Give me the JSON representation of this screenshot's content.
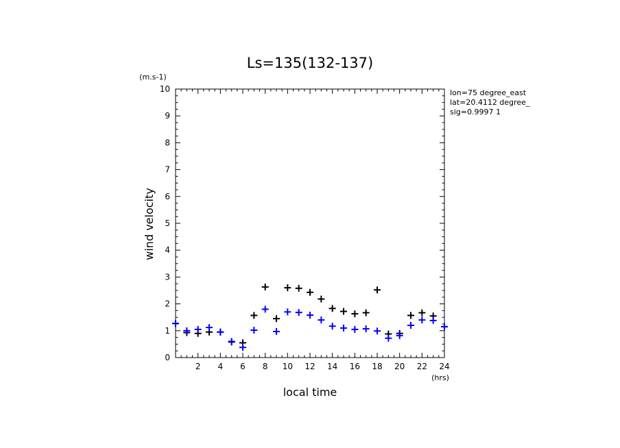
{
  "chart_data": {
    "type": "scatter",
    "title": "Ls=135(132-137)",
    "xlabel": "local time",
    "ylabel": "wind velocity",
    "x_unit": "(hrs)",
    "y_unit": "(m.s-1)",
    "xlim": [
      0,
      24
    ],
    "ylim": [
      0,
      10
    ],
    "x_ticks": [
      2,
      4,
      6,
      8,
      10,
      12,
      14,
      16,
      18,
      20,
      22,
      24
    ],
    "y_ticks": [
      0,
      1,
      2,
      3,
      4,
      5,
      6,
      7,
      8,
      9,
      10
    ],
    "grid": false,
    "legend": "none",
    "annotations": [
      "lon=75 degree_east",
      "lat=20.4112 degree_",
      "sig=0.9997 1"
    ],
    "series": [
      {
        "color": "#000000",
        "marker": "plus",
        "points": [
          [
            0,
            1.27
          ],
          [
            1,
            0.93
          ],
          [
            2,
            0.9
          ],
          [
            3,
            0.95
          ],
          [
            4,
            0.95
          ],
          [
            5,
            0.58
          ],
          [
            6,
            0.55
          ],
          [
            7,
            1.57
          ],
          [
            8,
            2.63
          ],
          [
            9,
            1.45
          ],
          [
            10,
            2.6
          ],
          [
            11,
            2.58
          ],
          [
            12,
            2.43
          ],
          [
            13,
            2.18
          ],
          [
            14,
            1.83
          ],
          [
            15,
            1.72
          ],
          [
            16,
            1.63
          ],
          [
            17,
            1.67
          ],
          [
            18,
            2.52
          ],
          [
            19,
            0.88
          ],
          [
            20,
            0.9
          ],
          [
            21,
            1.57
          ],
          [
            22,
            1.67
          ],
          [
            23,
            1.55
          ],
          [
            24,
            1.15
          ]
        ]
      },
      {
        "color": "#0000ff",
        "marker": "plus",
        "points": [
          [
            0,
            1.27
          ],
          [
            1,
            1.0
          ],
          [
            2,
            1.05
          ],
          [
            3,
            1.12
          ],
          [
            4,
            0.95
          ],
          [
            5,
            0.6
          ],
          [
            6,
            0.38
          ],
          [
            7,
            1.02
          ],
          [
            8,
            1.8
          ],
          [
            9,
            0.97
          ],
          [
            10,
            1.7
          ],
          [
            11,
            1.68
          ],
          [
            12,
            1.58
          ],
          [
            13,
            1.4
          ],
          [
            14,
            1.17
          ],
          [
            15,
            1.1
          ],
          [
            16,
            1.05
          ],
          [
            17,
            1.07
          ],
          [
            18,
            0.99
          ],
          [
            19,
            0.72
          ],
          [
            20,
            0.82
          ],
          [
            21,
            1.2
          ],
          [
            22,
            1.4
          ],
          [
            23,
            1.38
          ],
          [
            24,
            1.15
          ]
        ]
      }
    ]
  }
}
